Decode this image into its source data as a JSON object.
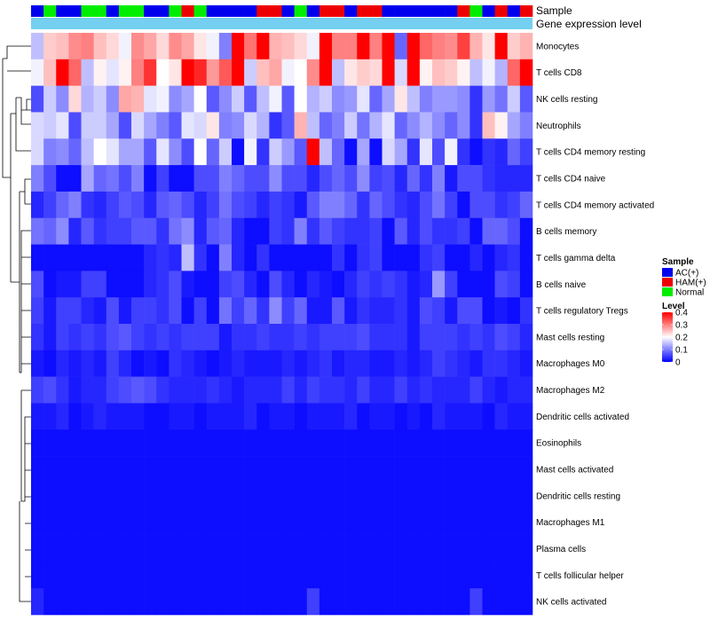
{
  "chart_data": {
    "type": "heatmap",
    "title": "",
    "annotation_tracks": {
      "sample_label": "Sample",
      "expression_label": "Gene expression level"
    },
    "samples": [
      "AC(+)",
      "Normal",
      "AC(+)",
      "AC(+)",
      "Normal",
      "Normal",
      "AC(+)",
      "Normal",
      "Normal",
      "AC(+)",
      "AC(+)",
      "Normal",
      "HAM(+)",
      "Normal",
      "AC(+)",
      "AC(+)",
      "AC(+)",
      "AC(+)",
      "HAM(+)",
      "HAM(+)",
      "AC(+)",
      "Normal",
      "AC(+)",
      "HAM(+)",
      "HAM(+)",
      "AC(+)",
      "HAM(+)",
      "HAM(+)",
      "AC(+)",
      "AC(+)",
      "AC(+)",
      "AC(+)",
      "AC(+)",
      "AC(+)",
      "HAM(+)",
      "Normal",
      "AC(+)",
      "HAM(+)",
      "AC(+)",
      "HAM(+)"
    ],
    "rows": [
      "Monocytes",
      "T cells CD8",
      "NK cells resting",
      "Neutrophils",
      "T cells CD4 memory resting",
      "T cells CD4 naive",
      "T cells CD4 memory activated",
      "B cells memory",
      "T cells gamma delta",
      "B cells naive",
      "T cells regulatory  Tregs",
      "Mast cells resting",
      "Macrophages M0",
      "Macrophages M2",
      "Dendritic cells activated",
      "Eosinophils",
      "Mast cells activated",
      "Dendritic cells resting",
      "Macrophages M1",
      "Plasma cells",
      "T cells follicular helper",
      "NK cells activated"
    ],
    "values": [
      [
        0.15,
        0.24,
        0.25,
        0.29,
        0.3,
        0.25,
        0.23,
        0.19,
        0.29,
        0.27,
        0.23,
        0.29,
        0.27,
        0.22,
        0.19,
        0.1,
        0.4,
        0.31,
        0.4,
        0.26,
        0.25,
        0.23,
        0.19,
        0.4,
        0.3,
        0.3,
        0.4,
        0.3,
        0.4,
        0.08,
        0.4,
        0.32,
        0.3,
        0.29,
        0.35,
        0.26,
        0.22,
        0.4,
        0.24,
        0.26
      ],
      [
        0.19,
        0.25,
        0.4,
        0.32,
        0.15,
        0.21,
        0.18,
        0.21,
        0.3,
        0.36,
        0.2,
        0.22,
        0.4,
        0.37,
        0.28,
        0.33,
        0.4,
        0.16,
        0.25,
        0.27,
        0.19,
        0.2,
        0.29,
        0.4,
        0.15,
        0.22,
        0.24,
        0.23,
        0.4,
        0.17,
        0.4,
        0.21,
        0.25,
        0.24,
        0.21,
        0.15,
        0.19,
        0.14,
        0.32,
        0.4
      ],
      [
        0.06,
        0.16,
        0.11,
        0.23,
        0.14,
        0.16,
        0.11,
        0.27,
        0.26,
        0.18,
        0.19,
        0.11,
        0.13,
        0.2,
        0.07,
        0.11,
        0.16,
        0.07,
        0.15,
        0.19,
        0.07,
        0.2,
        0.14,
        0.16,
        0.11,
        0.12,
        0.18,
        0.08,
        0.13,
        0.22,
        0.15,
        0.1,
        0.12,
        0.12,
        0.11,
        0.04,
        0.12,
        0.09,
        0.16,
        0.07
      ],
      [
        0.17,
        0.16,
        0.18,
        0.06,
        0.16,
        0.16,
        0.13,
        0.06,
        0.17,
        0.13,
        0.1,
        0.07,
        0.18,
        0.17,
        0.22,
        0.1,
        0.11,
        0.17,
        0.14,
        0.04,
        0.07,
        0.26,
        0.15,
        0.08,
        0.1,
        0.16,
        0.09,
        0.14,
        0.18,
        0.08,
        0.11,
        0.14,
        0.11,
        0.08,
        0.11,
        0.04,
        0.25,
        0.21,
        0.13,
        0.1
      ],
      [
        0.17,
        0.1,
        0.11,
        0.08,
        0.15,
        0.2,
        0.18,
        0.13,
        0.13,
        0.07,
        0.18,
        0.11,
        0.06,
        0.2,
        0.08,
        0.16,
        0.01,
        0.19,
        0.04,
        0.16,
        0.12,
        0.07,
        0.4,
        0.15,
        0.08,
        0.01,
        0.13,
        0.01,
        0.17,
        0.13,
        0.04,
        0.18,
        0.06,
        0.19,
        0.04,
        0.01,
        0.04,
        0.03,
        0.08,
        0.05
      ],
      [
        0.1,
        0.06,
        0.01,
        0.01,
        0.13,
        0.08,
        0.09,
        0.06,
        0.1,
        0.01,
        0.05,
        0.01,
        0.01,
        0.06,
        0.06,
        0.1,
        0.08,
        0.06,
        0.06,
        0.11,
        0.06,
        0.06,
        0.03,
        0.06,
        0.08,
        0.06,
        0.11,
        0.05,
        0.06,
        0.03,
        0.08,
        0.04,
        0.1,
        0.02,
        0.06,
        0.06,
        0.04,
        0.03,
        0.03,
        0.03
      ],
      [
        0.03,
        0.05,
        0.08,
        0.1,
        0.04,
        0.03,
        0.05,
        0.07,
        0.06,
        0.03,
        0.07,
        0.08,
        0.06,
        0.03,
        0.05,
        0.09,
        0.06,
        0.05,
        0.03,
        0.05,
        0.04,
        0.02,
        0.07,
        0.1,
        0.1,
        0.08,
        0.04,
        0.08,
        0.06,
        0.04,
        0.03,
        0.06,
        0.09,
        0.05,
        0.01,
        0.06,
        0.06,
        0.04,
        0.05,
        0.08
      ],
      [
        0.09,
        0.08,
        0.11,
        0.03,
        0.07,
        0.04,
        0.05,
        0.05,
        0.07,
        0.07,
        0.04,
        0.09,
        0.11,
        0.03,
        0.07,
        0.08,
        0.03,
        0.01,
        0.01,
        0.05,
        0.04,
        0.1,
        0.04,
        0.07,
        0.05,
        0.04,
        0.04,
        0.05,
        0.01,
        0.07,
        0.03,
        0.06,
        0.04,
        0.04,
        0.05,
        0.01,
        0.08,
        0.08,
        0.06,
        0.01
      ],
      [
        0.01,
        0.01,
        0.01,
        0.01,
        0.01,
        0.01,
        0.01,
        0.01,
        0.01,
        0.03,
        0.04,
        0.03,
        0.15,
        0.04,
        0.01,
        0.1,
        0.03,
        0.01,
        0.04,
        0.01,
        0.01,
        0.01,
        0.01,
        0.01,
        0.04,
        0.01,
        0.04,
        0.05,
        0.01,
        0.01,
        0.01,
        0.04,
        0.05,
        0.01,
        0.01,
        0.03,
        0.01,
        0.03,
        0.04,
        0.01
      ],
      [
        0.06,
        0.01,
        0.02,
        0.02,
        0.05,
        0.05,
        0.01,
        0.01,
        0.01,
        0.03,
        0.04,
        0.06,
        0.02,
        0.01,
        0.01,
        0.05,
        0.06,
        0.03,
        0.01,
        0.06,
        0.03,
        0.01,
        0.03,
        0.02,
        0.01,
        0.03,
        0.05,
        0.04,
        0.05,
        0.04,
        0.02,
        0.03,
        0.12,
        0.05,
        0.01,
        0.01,
        0.01,
        0.06,
        0.05,
        0.01
      ],
      [
        0.05,
        0.02,
        0.05,
        0.05,
        0.03,
        0.02,
        0.06,
        0.02,
        0.05,
        0.05,
        0.04,
        0.06,
        0.01,
        0.05,
        0.01,
        0.09,
        0.05,
        0.08,
        0.04,
        0.11,
        0.05,
        0.08,
        0.02,
        0.02,
        0.07,
        0.02,
        0.04,
        0.03,
        0.03,
        0.04,
        0.02,
        0.06,
        0.05,
        0.02,
        0.06,
        0.06,
        0.01,
        0.02,
        0.01,
        0.04
      ],
      [
        0.04,
        0.02,
        0.05,
        0.04,
        0.05,
        0.04,
        0.06,
        0.07,
        0.05,
        0.04,
        0.05,
        0.04,
        0.05,
        0.05,
        0.05,
        0.02,
        0.04,
        0.04,
        0.05,
        0.04,
        0.04,
        0.05,
        0.04,
        0.05,
        0.05,
        0.05,
        0.06,
        0.04,
        0.04,
        0.04,
        0.02,
        0.05,
        0.05,
        0.05,
        0.04,
        0.05,
        0.04,
        0.06,
        0.05,
        0.03
      ],
      [
        0.02,
        0.01,
        0.03,
        0.02,
        0.03,
        0.02,
        0.05,
        0.03,
        0.01,
        0.02,
        0.01,
        0.04,
        0.03,
        0.02,
        0.01,
        0.02,
        0.03,
        0.02,
        0.02,
        0.02,
        0.03,
        0.02,
        0.03,
        0.04,
        0.02,
        0.03,
        0.03,
        0.02,
        0.02,
        0.03,
        0.02,
        0.03,
        0.05,
        0.04,
        0.03,
        0.02,
        0.04,
        0.04,
        0.03,
        0.02
      ],
      [
        0.05,
        0.06,
        0.04,
        0.02,
        0.03,
        0.03,
        0.05,
        0.06,
        0.07,
        0.06,
        0.04,
        0.03,
        0.03,
        0.03,
        0.04,
        0.03,
        0.02,
        0.03,
        0.03,
        0.03,
        0.05,
        0.03,
        0.05,
        0.04,
        0.04,
        0.03,
        0.05,
        0.03,
        0.03,
        0.05,
        0.03,
        0.04,
        0.03,
        0.03,
        0.03,
        0.05,
        0.03,
        0.02,
        0.03,
        0.03
      ],
      [
        0.02,
        0.02,
        0.03,
        0.01,
        0.02,
        0.03,
        0.02,
        0.02,
        0.02,
        0.01,
        0.01,
        0.02,
        0.02,
        0.01,
        0.02,
        0.02,
        0.02,
        0.03,
        0.01,
        0.02,
        0.02,
        0.01,
        0.02,
        0.02,
        0.02,
        0.03,
        0.01,
        0.02,
        0.02,
        0.01,
        0.02,
        0.01,
        0.03,
        0.02,
        0.02,
        0.02,
        0.01,
        0.03,
        0.02,
        0.02
      ],
      [
        0.01,
        0.01,
        0.01,
        0.01,
        0.01,
        0.01,
        0.01,
        0.01,
        0.01,
        0.01,
        0.01,
        0.01,
        0.01,
        0.01,
        0.01,
        0.01,
        0.01,
        0.01,
        0.01,
        0.01,
        0.01,
        0.01,
        0.01,
        0.01,
        0.01,
        0.01,
        0.01,
        0.01,
        0.01,
        0.01,
        0.01,
        0.01,
        0.01,
        0.01,
        0.01,
        0.01,
        0.01,
        0.01,
        0.01,
        0.01
      ],
      [
        0.01,
        0.01,
        0.01,
        0.01,
        0.01,
        0.01,
        0.01,
        0.01,
        0.01,
        0.01,
        0.01,
        0.01,
        0.01,
        0.01,
        0.01,
        0.01,
        0.01,
        0.01,
        0.01,
        0.01,
        0.01,
        0.01,
        0.01,
        0.01,
        0.01,
        0.01,
        0.01,
        0.01,
        0.01,
        0.01,
        0.01,
        0.01,
        0.01,
        0.01,
        0.01,
        0.01,
        0.01,
        0.01,
        0.01,
        0.01
      ],
      [
        0.01,
        0.01,
        0.01,
        0.01,
        0.01,
        0.01,
        0.01,
        0.01,
        0.01,
        0.01,
        0.01,
        0.01,
        0.01,
        0.01,
        0.01,
        0.01,
        0.01,
        0.01,
        0.01,
        0.01,
        0.01,
        0.01,
        0.01,
        0.01,
        0.01,
        0.01,
        0.01,
        0.01,
        0.01,
        0.01,
        0.01,
        0.01,
        0.01,
        0.01,
        0.01,
        0.01,
        0.01,
        0.01,
        0.01,
        0.01
      ],
      [
        0.01,
        0.01,
        0.01,
        0.01,
        0.01,
        0.01,
        0.01,
        0.01,
        0.01,
        0.01,
        0.01,
        0.01,
        0.01,
        0.01,
        0.01,
        0.01,
        0.01,
        0.01,
        0.01,
        0.01,
        0.01,
        0.01,
        0.01,
        0.01,
        0.01,
        0.01,
        0.01,
        0.01,
        0.01,
        0.01,
        0.01,
        0.01,
        0.01,
        0.01,
        0.01,
        0.01,
        0.01,
        0.01,
        0.01,
        0.01
      ],
      [
        0.01,
        0.01,
        0.01,
        0.01,
        0.01,
        0.01,
        0.01,
        0.01,
        0.01,
        0.01,
        0.01,
        0.01,
        0.01,
        0.01,
        0.01,
        0.01,
        0.01,
        0.01,
        0.01,
        0.01,
        0.01,
        0.01,
        0.01,
        0.01,
        0.01,
        0.01,
        0.01,
        0.01,
        0.01,
        0.01,
        0.01,
        0.01,
        0.01,
        0.01,
        0.01,
        0.01,
        0.01,
        0.01,
        0.01,
        0.01
      ],
      [
        0.01,
        0.01,
        0.01,
        0.01,
        0.01,
        0.01,
        0.01,
        0.01,
        0.01,
        0.01,
        0.01,
        0.01,
        0.01,
        0.01,
        0.01,
        0.01,
        0.01,
        0.01,
        0.01,
        0.01,
        0.01,
        0.01,
        0.01,
        0.01,
        0.01,
        0.01,
        0.01,
        0.01,
        0.01,
        0.01,
        0.01,
        0.01,
        0.01,
        0.01,
        0.01,
        0.01,
        0.01,
        0.01,
        0.01,
        0.01
      ],
      [
        0.03,
        0.01,
        0.01,
        0.01,
        0.01,
        0.01,
        0.01,
        0.01,
        0.01,
        0.01,
        0.01,
        0.01,
        0.01,
        0.01,
        0.01,
        0.01,
        0.01,
        0.01,
        0.01,
        0.01,
        0.01,
        0.01,
        0.05,
        0.01,
        0.01,
        0.01,
        0.01,
        0.01,
        0.01,
        0.01,
        0.01,
        0.01,
        0.01,
        0.01,
        0.01,
        0.05,
        0.01,
        0.01,
        0.01,
        0.01
      ]
    ],
    "legend": {
      "sample": {
        "title": "Sample",
        "entries": [
          {
            "label": "AC(+)",
            "color": "#0000EE"
          },
          {
            "label": "HAM(+)",
            "color": "#EE0000"
          },
          {
            "label": "Normal",
            "color": "#00EE00"
          }
        ]
      },
      "level": {
        "title": "Level",
        "ticks": [
          "0.4",
          "0.3",
          "0.2",
          "0.1",
          "0"
        ],
        "range": [
          0,
          0.4
        ],
        "colors": {
          "low": "#0000FF",
          "mid": "#FFFFFF",
          "high": "#FF0000"
        }
      }
    },
    "expression_track_color": "#74CFF0",
    "sample_colors": {
      "AC(+)": "#0000EE",
      "HAM(+)": "#EE0000",
      "Normal": "#00EE00"
    }
  }
}
